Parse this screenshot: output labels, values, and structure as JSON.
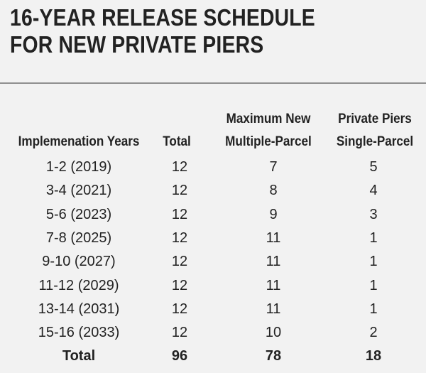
{
  "title": {
    "line1": "16-YEAR RELEASE SCHEDULE",
    "line2": "FOR NEW PRIVATE PIERS"
  },
  "table": {
    "header_top": {
      "multiple": "Maximum New",
      "single": "Private Piers"
    },
    "header": {
      "years": "Implemenation Years",
      "total": "Total",
      "multiple": "Multiple-Parcel",
      "single": "Single-Parcel"
    },
    "rows": [
      {
        "years": "1-2  (2019)",
        "total": "12",
        "multiple": "7",
        "single": "5"
      },
      {
        "years": "3-4  (2021)",
        "total": "12",
        "multiple": "8",
        "single": "4"
      },
      {
        "years": "5-6  (2023)",
        "total": "12",
        "multiple": "9",
        "single": "3"
      },
      {
        "years": "7-8  (2025)",
        "total": "12",
        "multiple": "11",
        "single": "1"
      },
      {
        "years": "9-10  (2027)",
        "total": "12",
        "multiple": "11",
        "single": "1"
      },
      {
        "years": "11-12  (2029)",
        "total": "12",
        "multiple": "11",
        "single": "1"
      },
      {
        "years": "13-14  (2031)",
        "total": "12",
        "multiple": "11",
        "single": "1"
      },
      {
        "years": "15-16  (2033)",
        "total": "12",
        "multiple": "10",
        "single": "2"
      }
    ],
    "totals": {
      "years": "Total",
      "total": "96",
      "multiple": "78",
      "single": "18"
    }
  }
}
